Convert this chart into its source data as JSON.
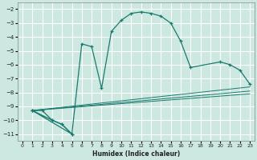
{
  "xlabel": "Humidex (Indice chaleur)",
  "bg_color": "#cce8e0",
  "grid_color": "#ffffff",
  "line_color": "#1a7a6e",
  "xlim": [
    -0.5,
    23.5
  ],
  "ylim": [
    -11.5,
    -1.5
  ],
  "xticks": [
    0,
    1,
    2,
    3,
    4,
    5,
    6,
    7,
    8,
    9,
    10,
    11,
    12,
    13,
    14,
    15,
    16,
    17,
    18,
    19,
    20,
    21,
    22,
    23
  ],
  "yticks": [
    -2,
    -3,
    -4,
    -5,
    -6,
    -7,
    -8,
    -9,
    -10,
    -11
  ],
  "main_curve": {
    "x": [
      1,
      2,
      3,
      4,
      5,
      6,
      7,
      8,
      9,
      10,
      11,
      12,
      13,
      14,
      15,
      16,
      17,
      20,
      21,
      22,
      23
    ],
    "y": [
      -9.3,
      -9.3,
      -10.0,
      -10.3,
      -11.0,
      -4.5,
      -4.7,
      -7.7,
      -3.6,
      -2.8,
      -2.3,
      -2.2,
      -2.3,
      -2.5,
      -3.0,
      -4.3,
      -6.2,
      -5.8,
      -6.0,
      -6.4,
      -7.4
    ]
  },
  "triangle": {
    "x": [
      1,
      3,
      4,
      5,
      1
    ],
    "y": [
      -9.3,
      -10.0,
      -10.3,
      -11.0,
      -9.3
    ]
  },
  "diag1": {
    "x": [
      1,
      23
    ],
    "y": [
      -9.3,
      -7.6
    ]
  },
  "diag2": {
    "x": [
      1,
      23
    ],
    "y": [
      -9.3,
      -7.9
    ]
  },
  "diag3": {
    "x": [
      1,
      23
    ],
    "y": [
      -9.3,
      -8.1
    ]
  }
}
